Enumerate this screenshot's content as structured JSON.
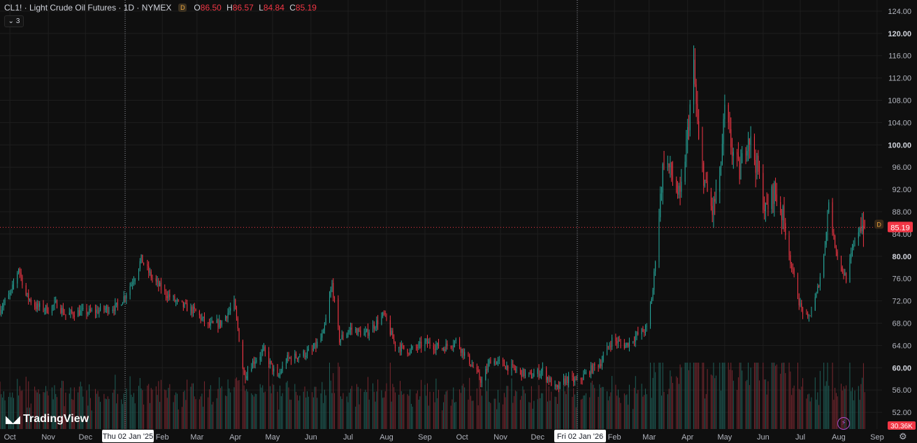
{
  "legend": {
    "symbol_title": "CL1! · Light Crude Oil Futures · 1D · NYMEX",
    "badge": "D",
    "open_label": "O",
    "open": "86.50",
    "high_label": "H",
    "high": "86.57",
    "low_label": "L",
    "low": "84.84",
    "close_label": "C",
    "close": "85.19",
    "indicator_count": "3"
  },
  "branding": {
    "logo_text": "TradingView",
    "logo_icon": "tradingview-logo-icon"
  },
  "price_badges": {
    "last_price": "85.19",
    "last_price_color": "#f23645",
    "volume": "30.36K",
    "volume_color": "#f23645",
    "series_badge": "D"
  },
  "crosshair_labels": [
    {
      "text": "Thu 02 Jan '25",
      "date": "2025-01-02"
    },
    {
      "text": "Fri 02 Jan '26",
      "date": "2026-01-02"
    }
  ],
  "colors": {
    "up": "#26a69a",
    "down": "#f23645",
    "up_vol": "#1f5f58",
    "down_vol": "#7a2830",
    "grid": "#1e1e1e",
    "background": "#0f0f0f"
  },
  "chart_data": {
    "type": "candlestick",
    "interval": "1D",
    "y_ticks": [
      "52.00",
      "56.00",
      "60.00",
      "64.00",
      "68.00",
      "72.00",
      "76.00",
      "80.00",
      "84.00",
      "88.00",
      "92.00",
      "96.00",
      "100.00",
      "104.00",
      "108.00",
      "112.00",
      "116.00",
      "120.00",
      "124.00"
    ],
    "y_bold": [
      "60.00",
      "80.00",
      "100.00",
      "120.00"
    ],
    "ylim": [
      49,
      126
    ],
    "x_ticks": [
      {
        "label": "Oct",
        "date": "2024-10-01"
      },
      {
        "label": "Nov",
        "date": "2024-11-01"
      },
      {
        "label": "Dec",
        "date": "2024-12-01"
      },
      {
        "label": "Feb",
        "date": "2025-02-01"
      },
      {
        "label": "Mar",
        "date": "2025-03-01"
      },
      {
        "label": "Apr",
        "date": "2025-04-01"
      },
      {
        "label": "May",
        "date": "2025-05-01"
      },
      {
        "label": "Jun",
        "date": "2025-06-01"
      },
      {
        "label": "Jul",
        "date": "2025-07-01"
      },
      {
        "label": "Aug",
        "date": "2025-08-01"
      },
      {
        "label": "Sep",
        "date": "2025-09-01"
      },
      {
        "label": "Oct",
        "date": "2025-10-01"
      },
      {
        "label": "Nov",
        "date": "2025-11-01"
      },
      {
        "label": "Dec",
        "date": "2025-12-01"
      },
      {
        "label": "Feb",
        "date": "2026-02-01"
      },
      {
        "label": "Mar",
        "date": "2026-03-01"
      },
      {
        "label": "Apr",
        "date": "2026-04-01"
      },
      {
        "label": "May",
        "date": "2026-05-01"
      },
      {
        "label": "Jun",
        "date": "2026-06-01"
      },
      {
        "label": "Jul",
        "date": "2026-07-01"
      },
      {
        "label": "Aug",
        "date": "2026-08-01"
      },
      {
        "label": "Sep",
        "date": "2026-09-01"
      }
    ],
    "x_range": [
      "2024-09-23",
      "2026-09-05"
    ],
    "close_series": [
      [
        "2024-09-23",
        70.5
      ],
      [
        "2024-10-02",
        73.5
      ],
      [
        "2024-10-08",
        78.0
      ],
      [
        "2024-10-14",
        73.0
      ],
      [
        "2024-10-22",
        71.0
      ],
      [
        "2024-11-01",
        70.5
      ],
      [
        "2024-11-08",
        71.5
      ],
      [
        "2024-11-15",
        69.5
      ],
      [
        "2024-11-25",
        70.0
      ],
      [
        "2024-12-06",
        70.0
      ],
      [
        "2024-12-16",
        70.5
      ],
      [
        "2024-12-27",
        71.0
      ],
      [
        "2025-01-02",
        73.0
      ],
      [
        "2025-01-10",
        76.5
      ],
      [
        "2025-01-15",
        79.5
      ],
      [
        "2025-01-24",
        76.0
      ],
      [
        "2025-02-03",
        73.5
      ],
      [
        "2025-02-14",
        71.5
      ],
      [
        "2025-02-28",
        70.0
      ],
      [
        "2025-03-10",
        67.5
      ],
      [
        "2025-03-20",
        68.0
      ],
      [
        "2025-03-31",
        71.5
      ],
      [
        "2025-04-03",
        67.0
      ],
      [
        "2025-04-08",
        58.5
      ],
      [
        "2025-04-15",
        61.0
      ],
      [
        "2025-04-24",
        63.0
      ],
      [
        "2025-05-05",
        58.0
      ],
      [
        "2025-05-12",
        61.5
      ],
      [
        "2025-05-20",
        62.0
      ],
      [
        "2025-06-02",
        63.0
      ],
      [
        "2025-06-11",
        66.0
      ],
      [
        "2025-06-18",
        75.0
      ],
      [
        "2025-06-24",
        65.0
      ],
      [
        "2025-07-03",
        67.0
      ],
      [
        "2025-07-15",
        66.0
      ],
      [
        "2025-07-30",
        69.5
      ],
      [
        "2025-08-08",
        64.0
      ],
      [
        "2025-08-20",
        63.0
      ],
      [
        "2025-09-02",
        64.5
      ],
      [
        "2025-09-15",
        63.5
      ],
      [
        "2025-09-26",
        64.8
      ],
      [
        "2025-10-06",
        61.5
      ],
      [
        "2025-10-17",
        57.5
      ],
      [
        "2025-10-24",
        61.5
      ],
      [
        "2025-11-04",
        60.5
      ],
      [
        "2025-11-14",
        59.5
      ],
      [
        "2025-11-25",
        58.5
      ],
      [
        "2025-12-05",
        59.5
      ],
      [
        "2025-12-16",
        56.0
      ],
      [
        "2025-12-24",
        58.0
      ],
      [
        "2026-01-02",
        57.5
      ],
      [
        "2026-01-12",
        59.5
      ],
      [
        "2026-01-21",
        61.0
      ],
      [
        "2026-01-30",
        65.0
      ],
      [
        "2026-02-10",
        64.0
      ],
      [
        "2026-02-20",
        66.0
      ],
      [
        "2026-02-27",
        67.0
      ],
      [
        "2026-03-04",
        74.0
      ],
      [
        "2026-03-09",
        88.0
      ],
      [
        "2026-03-13",
        98.0
      ],
      [
        "2026-03-20",
        94.0
      ],
      [
        "2026-03-26",
        90.0
      ],
      [
        "2026-04-01",
        102.0
      ],
      [
        "2026-04-06",
        114.0
      ],
      [
        "2026-04-10",
        100.0
      ],
      [
        "2026-04-16",
        92.0
      ],
      [
        "2026-04-21",
        88.0
      ],
      [
        "2026-04-27",
        94.0
      ],
      [
        "2026-05-01",
        106.0
      ],
      [
        "2026-05-07",
        99.0
      ],
      [
        "2026-05-13",
        95.0
      ],
      [
        "2026-05-20",
        102.0
      ],
      [
        "2026-05-27",
        96.0
      ],
      [
        "2026-06-03",
        88.0
      ],
      [
        "2026-06-10",
        92.0
      ],
      [
        "2026-06-17",
        87.0
      ],
      [
        "2026-06-24",
        78.0
      ],
      [
        "2026-07-01",
        71.0
      ],
      [
        "2026-07-07",
        68.5
      ],
      [
        "2026-07-14",
        73.0
      ],
      [
        "2026-07-20",
        80.0
      ],
      [
        "2026-07-24",
        90.0
      ],
      [
        "2026-07-28",
        83.0
      ],
      [
        "2026-08-03",
        78.0
      ],
      [
        "2026-08-07",
        76.0
      ],
      [
        "2026-08-12",
        81.0
      ],
      [
        "2026-08-18",
        86.0
      ],
      [
        "2026-08-22",
        85.19
      ]
    ],
    "last_close": 85.19
  }
}
